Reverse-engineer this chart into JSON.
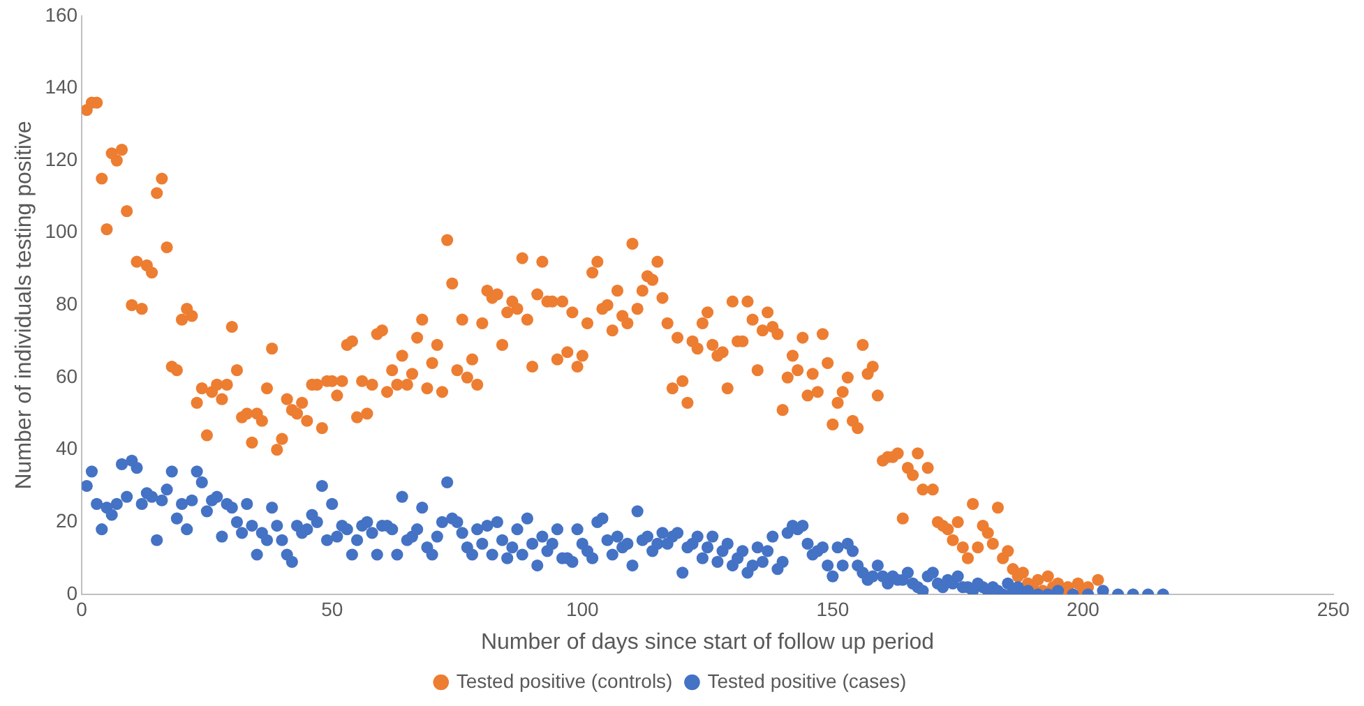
{
  "chart_data": {
    "type": "scatter",
    "xlabel": "Number of days since start of follow up period",
    "ylabel": "Number of individuals testing positive",
    "x": [
      1,
      2,
      3,
      4,
      5,
      6,
      7,
      8,
      9,
      10,
      11,
      12,
      13,
      14,
      15,
      16,
      17,
      18,
      19,
      20,
      21,
      22,
      23,
      24,
      25,
      26,
      27,
      28,
      29,
      30,
      31,
      32,
      33,
      34,
      35,
      36,
      37,
      38,
      39,
      40,
      41,
      42,
      43,
      44,
      45,
      46,
      47,
      48,
      49,
      50,
      51,
      52,
      53,
      54,
      55,
      56,
      57,
      58,
      59,
      60,
      61,
      62,
      63,
      64,
      65,
      66,
      67,
      68,
      69,
      70,
      71,
      72,
      73,
      74,
      75,
      76,
      77,
      78,
      79,
      80,
      81,
      82,
      83,
      84,
      85,
      86,
      87,
      88,
      89,
      90,
      91,
      92,
      93,
      94,
      95,
      96,
      97,
      98,
      99,
      100,
      101,
      102,
      103,
      104,
      105,
      106,
      107,
      108,
      109,
      110,
      111,
      112,
      113,
      114,
      115,
      116,
      117,
      118,
      119,
      120,
      121,
      122,
      123,
      124,
      125,
      126,
      127,
      128,
      129,
      130,
      131,
      132,
      133,
      134,
      135,
      136,
      137,
      138,
      139,
      140,
      141,
      142,
      143,
      144,
      145,
      146,
      147,
      148,
      149,
      150,
      151,
      152,
      153,
      154,
      155,
      156,
      157,
      158,
      159,
      160,
      161,
      162,
      163,
      164,
      165,
      166,
      167,
      168,
      169,
      170,
      171,
      172,
      173,
      174,
      175,
      176,
      177,
      178,
      179,
      180,
      181,
      182,
      183,
      184,
      185,
      186,
      187,
      188,
      189,
      190,
      191,
      192,
      193,
      194,
      195,
      196,
      197,
      198,
      199,
      200,
      201,
      202,
      203,
      204,
      205,
      206,
      207,
      208,
      209,
      210,
      211,
      212,
      213,
      214,
      215,
      216
    ],
    "series": [
      {
        "name": "Tested positive (controls)",
        "color": "#ed7d31",
        "values": [
          134,
          136,
          136,
          115,
          101,
          122,
          120,
          123,
          106,
          80,
          92,
          79,
          91,
          89,
          111,
          115,
          96,
          63,
          62,
          76,
          79,
          77,
          53,
          57,
          44,
          56,
          58,
          54,
          58,
          74,
          62,
          49,
          50,
          42,
          50,
          48,
          57,
          68,
          40,
          43,
          54,
          51,
          50,
          53,
          48,
          58,
          58,
          46,
          59,
          59,
          55,
          59,
          69,
          70,
          49,
          59,
          50,
          58,
          72,
          73,
          56,
          62,
          58,
          66,
          58,
          61,
          71,
          76,
          57,
          64,
          69,
          56,
          98,
          86,
          62,
          76,
          60,
          65,
          58,
          75,
          84,
          82,
          83,
          69,
          78,
          81,
          79,
          93,
          76,
          63,
          83,
          92,
          81,
          81,
          65,
          81,
          67,
          78,
          63,
          66,
          75,
          89,
          92,
          79,
          80,
          73,
          84,
          77,
          75,
          97,
          79,
          84,
          88,
          87,
          92,
          82,
          75,
          57,
          71,
          59,
          53,
          70,
          68,
          75,
          78,
          69,
          66,
          67,
          57,
          81,
          70,
          70,
          81,
          76,
          62,
          73,
          78,
          74,
          72,
          51,
          60,
          66,
          62,
          71,
          55,
          61,
          56,
          72,
          64,
          47,
          53,
          56,
          60,
          48,
          46,
          69,
          61,
          63,
          55,
          37,
          38,
          38,
          39,
          21,
          35,
          33,
          39,
          29,
          35,
          29,
          20,
          19,
          18,
          15,
          20,
          13,
          10,
          25,
          13,
          19,
          17,
          14,
          24,
          10,
          12,
          7,
          5,
          6,
          3,
          2,
          4,
          1,
          5,
          2,
          3,
          1,
          2,
          null,
          3,
          1,
          2,
          null,
          4,
          null,
          null,
          null,
          null,
          null,
          null,
          null,
          null,
          null,
          null,
          null,
          null,
          null
        ]
      },
      {
        "name": "Tested positive (cases)",
        "color": "#4472c4",
        "values": [
          30,
          34,
          25,
          18,
          24,
          22,
          25,
          36,
          27,
          37,
          35,
          25,
          28,
          27,
          15,
          26,
          29,
          34,
          21,
          25,
          18,
          26,
          34,
          31,
          23,
          26,
          27,
          16,
          25,
          24,
          20,
          17,
          25,
          19,
          11,
          17,
          15,
          24,
          19,
          15,
          11,
          9,
          19,
          17,
          18,
          22,
          20,
          30,
          15,
          25,
          16,
          19,
          18,
          11,
          15,
          19,
          20,
          17,
          11,
          19,
          19,
          18,
          11,
          27,
          15,
          16,
          18,
          24,
          13,
          11,
          16,
          20,
          31,
          21,
          20,
          17,
          13,
          11,
          18,
          14,
          19,
          11,
          20,
          15,
          10,
          13,
          18,
          11,
          21,
          14,
          8,
          16,
          12,
          14,
          18,
          10,
          10,
          9,
          18,
          14,
          12,
          10,
          20,
          21,
          15,
          11,
          16,
          13,
          14,
          8,
          23,
          15,
          16,
          12,
          14,
          17,
          14,
          16,
          17,
          6,
          13,
          14,
          16,
          10,
          13,
          16,
          9,
          12,
          14,
          8,
          10,
          12,
          6,
          8,
          13,
          9,
          12,
          16,
          7,
          9,
          17,
          19,
          18,
          19,
          14,
          11,
          12,
          13,
          8,
          5,
          13,
          8,
          14,
          12,
          8,
          6,
          4,
          5,
          8,
          5,
          3,
          5,
          4,
          4,
          6,
          3,
          2,
          1,
          5,
          6,
          3,
          2,
          4,
          3,
          5,
          2,
          2,
          1,
          3,
          2,
          1,
          2,
          1,
          0,
          3,
          1,
          2,
          0,
          1,
          null,
          0,
          null,
          0,
          null,
          1,
          null,
          null,
          0,
          null,
          null,
          0,
          null,
          null,
          1,
          null,
          null,
          0,
          null,
          null,
          0,
          null,
          null,
          0,
          null,
          null,
          0
        ]
      }
    ],
    "xlim": [
      0,
      250
    ],
    "xticks": [
      0,
      50,
      100,
      150,
      200,
      250
    ],
    "ylim": [
      0,
      160
    ],
    "yticks": [
      0,
      20,
      40,
      60,
      80,
      100,
      120,
      140,
      160
    ],
    "grid": false,
    "legend": "bottom",
    "marker": "circle"
  }
}
